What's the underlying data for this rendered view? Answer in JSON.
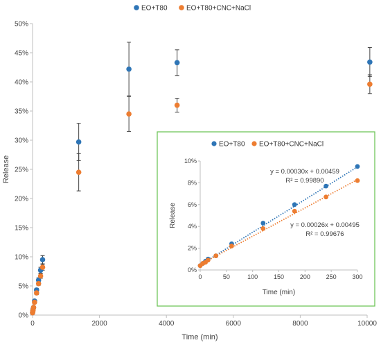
{
  "chart_data": [
    {
      "type": "scatter",
      "title": "",
      "xlabel": "Time (min)",
      "ylabel": "Release",
      "xlim": [
        0,
        10000
      ],
      "ylim": [
        0,
        50
      ],
      "x_ticks": [
        "0",
        "2000",
        "4000",
        "6000",
        "8000",
        "10000"
      ],
      "x_tick_values": [
        0,
        2000,
        4000,
        6000,
        8000,
        10000
      ],
      "y_ticks": [
        "0%",
        "5%",
        "10%",
        "15%",
        "20%",
        "25%",
        "30%",
        "35%",
        "40%",
        "45%",
        "50%"
      ],
      "y_tick_values": [
        0,
        5,
        10,
        15,
        20,
        25,
        30,
        35,
        40,
        45,
        50
      ],
      "legend_position": "top-center",
      "grid": false,
      "series": [
        {
          "name": "EO+T80",
          "color": "#2E75B6",
          "x": [
            0,
            5,
            10,
            15,
            30,
            60,
            120,
            180,
            240,
            300,
            1380,
            2880,
            4320,
            10080
          ],
          "y": [
            0.4,
            0.6,
            0.8,
            1.0,
            1.3,
            2.4,
            4.3,
            6.0,
            7.7,
            9.5,
            29.7,
            42.2,
            43.3,
            43.4
          ],
          "error": [
            0.1,
            0.1,
            0.1,
            0.1,
            0.1,
            0.2,
            0.3,
            0.4,
            0.5,
            0.7,
            3.2,
            4.6,
            2.2,
            2.5
          ]
        },
        {
          "name": "EO+T80+CNC+NaCl",
          "color": "#ED7D31",
          "x": [
            0,
            5,
            10,
            15,
            30,
            60,
            120,
            180,
            240,
            300,
            1380,
            2880,
            4320,
            10080
          ],
          "y": [
            0.4,
            0.6,
            0.7,
            0.9,
            1.3,
            2.2,
            3.8,
            5.4,
            6.7,
            8.2,
            24.5,
            34.5,
            36.0,
            39.6
          ],
          "error": [
            0.1,
            0.1,
            0.1,
            0.1,
            0.1,
            0.2,
            0.3,
            0.3,
            0.4,
            0.5,
            3.2,
            3.0,
            1.2,
            1.6
          ]
        }
      ]
    },
    {
      "type": "scatter",
      "title": "",
      "xlabel": "Time (min)",
      "ylabel": "Release",
      "xlim": [
        0,
        300
      ],
      "ylim": [
        0,
        10
      ],
      "x_ticks": [
        "0",
        "50",
        "100",
        "150",
        "200",
        "250",
        "300"
      ],
      "x_tick_values": [
        0,
        50,
        100,
        150,
        200,
        250,
        300
      ],
      "y_ticks": [
        "0%",
        "2%",
        "4%",
        "6%",
        "8%",
        "10%"
      ],
      "y_tick_values": [
        0,
        2,
        4,
        6,
        8,
        10
      ],
      "legend_position": "top-center",
      "grid": false,
      "border_color": "#70C55A",
      "series": [
        {
          "name": "EO+T80",
          "color": "#2E75B6",
          "x": [
            0,
            5,
            10,
            15,
            30,
            60,
            120,
            180,
            240,
            300
          ],
          "y": [
            0.4,
            0.6,
            0.8,
            1.0,
            1.3,
            2.4,
            4.3,
            6.0,
            7.7,
            9.5
          ],
          "trendline": {
            "slope": 0.0003,
            "intercept": 0.00459,
            "style": "dotted"
          },
          "equation": "y = 0.00030x + 0.00459",
          "r2": "R² = 0.99890"
        },
        {
          "name": "EO+T80+CNC+NaCl",
          "color": "#ED7D31",
          "x": [
            0,
            5,
            10,
            15,
            30,
            60,
            120,
            180,
            240,
            300
          ],
          "y": [
            0.4,
            0.6,
            0.7,
            0.9,
            1.3,
            2.2,
            3.8,
            5.4,
            6.7,
            8.2
          ],
          "trendline": {
            "slope": 0.00026,
            "intercept": 0.00495,
            "style": "dotted"
          },
          "equation": "y = 0.00026x + 0.00495",
          "r2": "R² = 0.99676"
        }
      ]
    }
  ]
}
